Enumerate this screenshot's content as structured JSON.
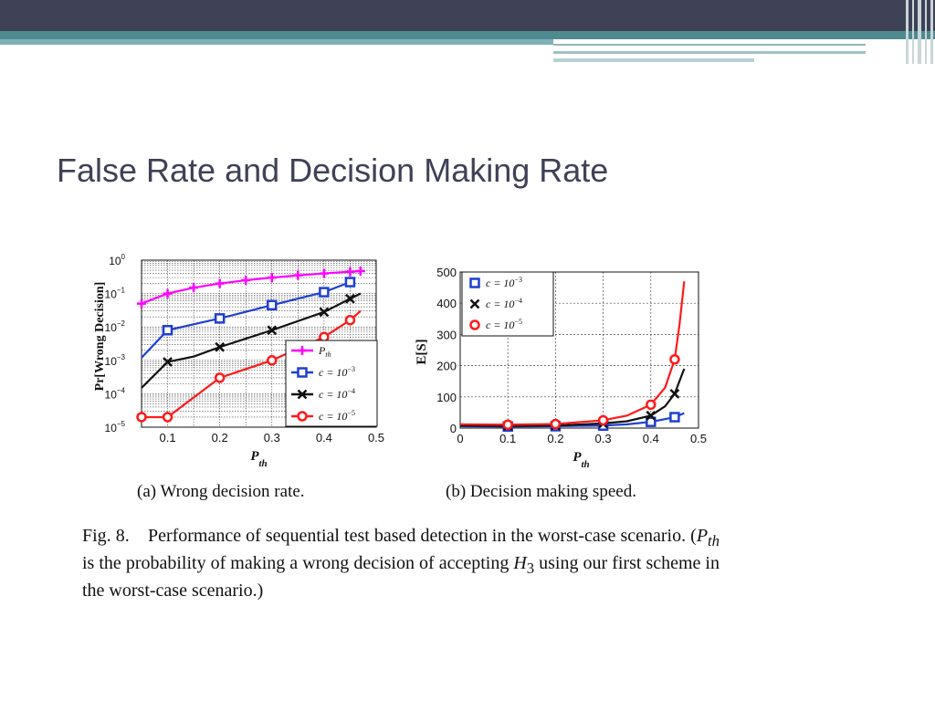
{
  "slide": {
    "title": "False Rate and Decision Making Rate"
  },
  "theme": {
    "dark": "#3f4157",
    "teal": "#4f8a8f",
    "light_teal": "#7fb0b4"
  },
  "captions": {
    "sub_a": "(a)  Wrong decision rate.",
    "sub_b": "(b)  Decision making speed.",
    "fig_label": "Fig. 8.",
    "fig_text_1": "Performance of sequential test based detection in the worst-case scenario. (",
    "fig_text_pth": "P",
    "fig_text_pth_sub": "th",
    "fig_text_2": " is the probability of making a wrong decision of accepting ",
    "fig_text_h": "H",
    "fig_text_h_sub": "3",
    "fig_text_3": " using our first scheme in the worst-case scenario.)"
  },
  "chart_data": [
    {
      "type": "line",
      "xlabel": "P",
      "xlabel_sub": "th",
      "ylabel": "Pr[Wrong Decision]",
      "yscale": "log",
      "xlim": [
        0.05,
        0.5
      ],
      "ylim": [
        1e-05,
        1
      ],
      "xticks": [
        "0.1",
        "0.2",
        "0.3",
        "0.4",
        "0.5"
      ],
      "yticks": [
        {
          "base": "10",
          "exp": "0"
        },
        {
          "base": "10",
          "exp": "−1"
        },
        {
          "base": "10",
          "exp": "−2"
        },
        {
          "base": "10",
          "exp": "−3"
        },
        {
          "base": "10",
          "exp": "−4"
        },
        {
          "base": "10",
          "exp": "−5"
        }
      ],
      "grid": true,
      "legend_position": "lower-right",
      "series": [
        {
          "name": "P_th",
          "legend_main": "P",
          "legend_sub": "th",
          "color": "#ff00ff",
          "marker": "plus",
          "x": [
            0.05,
            0.1,
            0.15,
            0.2,
            0.25,
            0.3,
            0.35,
            0.4,
            0.45,
            0.47
          ],
          "y": [
            0.05,
            0.1,
            0.15,
            0.2,
            0.25,
            0.3,
            0.35,
            0.4,
            0.45,
            0.47
          ],
          "marker_x": [
            0.05,
            0.1,
            0.15,
            0.2,
            0.25,
            0.3,
            0.35,
            0.4,
            0.45,
            0.47
          ]
        },
        {
          "name": "c = 10^-3",
          "legend_main": "c = 10",
          "legend_exp": "−3",
          "color": "#1f3fd0",
          "marker": "square",
          "x": [
            0.05,
            0.1,
            0.2,
            0.3,
            0.4,
            0.45
          ],
          "y": [
            0.0012,
            0.008,
            0.018,
            0.045,
            0.11,
            0.22
          ],
          "marker_x": [
            0.1,
            0.2,
            0.3,
            0.4,
            0.45
          ]
        },
        {
          "name": "c = 10^-4",
          "legend_main": "c = 10",
          "legend_exp": "−4",
          "color": "#111111",
          "marker": "x",
          "x": [
            0.05,
            0.1,
            0.15,
            0.2,
            0.3,
            0.4,
            0.45,
            0.47
          ],
          "y": [
            0.00015,
            0.0009,
            0.0013,
            0.0025,
            0.008,
            0.028,
            0.07,
            0.1
          ],
          "marker_x": [
            0.1,
            0.2,
            0.3,
            0.4,
            0.45
          ]
        },
        {
          "name": "c = 10^-5",
          "legend_main": "c = 10",
          "legend_exp": "−5",
          "color": "#ff1a1a",
          "marker": "circle",
          "x": [
            0.05,
            0.1,
            0.2,
            0.3,
            0.4,
            0.45,
            0.47
          ],
          "y": [
            2e-05,
            2e-05,
            0.0003,
            0.001,
            0.005,
            0.016,
            0.03
          ],
          "marker_x": [
            0.05,
            0.1,
            0.2,
            0.3,
            0.4,
            0.45
          ]
        }
      ]
    },
    {
      "type": "line",
      "xlabel": "P",
      "xlabel_sub": "th",
      "ylabel": "E[S]",
      "xlim": [
        0,
        0.5
      ],
      "ylim": [
        0,
        500
      ],
      "xticks": [
        "0",
        "0.1",
        "0.2",
        "0.3",
        "0.4",
        "0.5"
      ],
      "yticks": [
        "0",
        "100",
        "200",
        "300",
        "400",
        "500"
      ],
      "grid": true,
      "legend_position": "top-left",
      "series": [
        {
          "name": "c = 10^-3",
          "legend_main": "c = 10",
          "legend_exp": "−3",
          "color": "#1f3fd0",
          "marker": "square",
          "x": [
            0,
            0.1,
            0.2,
            0.3,
            0.35,
            0.4,
            0.45,
            0.47
          ],
          "y": [
            6,
            5,
            6,
            8,
            12,
            20,
            35,
            48
          ],
          "marker_x": [
            0.1,
            0.2,
            0.3,
            0.4,
            0.45
          ]
        },
        {
          "name": "c = 10^-4",
          "legend_main": "c = 10",
          "legend_exp": "−4",
          "color": "#111111",
          "marker": "x",
          "x": [
            0,
            0.1,
            0.2,
            0.3,
            0.35,
            0.4,
            0.43,
            0.45,
            0.47
          ],
          "y": [
            8,
            7,
            8,
            15,
            22,
            40,
            70,
            110,
            190
          ],
          "marker_x": [
            0.1,
            0.2,
            0.3,
            0.4,
            0.45
          ]
        },
        {
          "name": "c = 10^-5",
          "legend_main": "c = 10",
          "legend_exp": "−5",
          "color": "#ff1a1a",
          "marker": "circle",
          "x": [
            0,
            0.1,
            0.2,
            0.3,
            0.35,
            0.4,
            0.43,
            0.45,
            0.46,
            0.47
          ],
          "y": [
            12,
            11,
            13,
            25,
            40,
            75,
            130,
            220,
            330,
            470
          ],
          "marker_x": [
            0.1,
            0.2,
            0.3,
            0.4,
            0.45
          ]
        }
      ]
    }
  ]
}
